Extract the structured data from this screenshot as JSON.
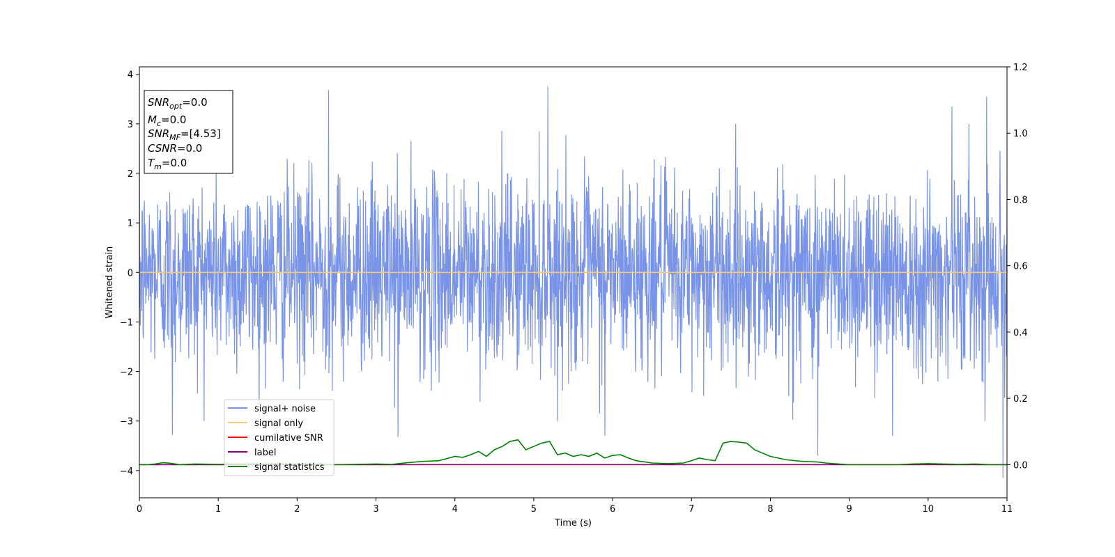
{
  "chart_data": {
    "type": "line",
    "xlabel": "Time (s)",
    "ylabel": "Whitened strain",
    "xlim": [
      0,
      11
    ],
    "ylim": [
      -4.55,
      4.15
    ],
    "y2lim": [
      -0.1,
      1.2
    ],
    "x_ticks": [
      "0",
      "1",
      "2",
      "3",
      "4",
      "5",
      "6",
      "7",
      "8",
      "9",
      "10",
      "11"
    ],
    "y_ticks": [
      "−4",
      "−3",
      "−2",
      "−1",
      "0",
      "1",
      "2",
      "3",
      "4"
    ],
    "y2_ticks": [
      "0.0",
      "0.2",
      "0.4",
      "0.6",
      "0.8",
      "1.0",
      "1.2"
    ],
    "grid": false,
    "legend_position": "lower-left",
    "info_box": {
      "position": "top-left",
      "lines": [
        {
          "base": "SNR",
          "sub": "opt",
          "value": "=0.0"
        },
        {
          "base": "M",
          "sub": "c",
          "value": "=0.0"
        },
        {
          "base": "SNR",
          "sub": "MF",
          "value": "=[4.53]"
        },
        {
          "base": "CSNR",
          "sub": "",
          "value": "=0.0"
        },
        {
          "base": "T",
          "sub": "m",
          "value": "=0.0"
        }
      ]
    },
    "series": [
      {
        "name": "signal+ noise",
        "color": "#7893e8",
        "axis": "left",
        "kind": "noise",
        "x_range": [
          0,
          11
        ],
        "amplitude_sd": 1.0,
        "spikes": [
          [
            2.4,
            3.68
          ],
          [
            5.18,
            3.75
          ],
          [
            10.3,
            3.35
          ],
          [
            10.74,
            3.55
          ],
          [
            3.28,
            -3.32
          ],
          [
            8.6,
            -3.7
          ],
          [
            10.95,
            -4.15
          ],
          [
            5.9,
            -3.3
          ],
          [
            0.42,
            -3.28
          ],
          [
            9.55,
            -3.3
          ]
        ]
      },
      {
        "name": "signal only",
        "color": "#ffc96b",
        "axis": "left",
        "x": [
          0,
          11
        ],
        "y": [
          0,
          0
        ]
      },
      {
        "name": "cumilative SNR",
        "color": "#ff0000",
        "axis": "right",
        "x": [
          0,
          11
        ],
        "y": [
          0,
          0
        ]
      },
      {
        "name": "label",
        "color": "#800080",
        "axis": "right",
        "x": [
          0,
          11
        ],
        "y": [
          0,
          0
        ]
      },
      {
        "name": "signal statistics",
        "color": "#008000",
        "axis": "right",
        "x": [
          0,
          0.1,
          0.2,
          0.3,
          0.4,
          0.5,
          0.7,
          1.0,
          1.5,
          2.0,
          2.5,
          3.0,
          3.2,
          3.4,
          3.6,
          3.8,
          4.0,
          4.1,
          4.2,
          4.3,
          4.4,
          4.5,
          4.6,
          4.7,
          4.8,
          4.9,
          5.0,
          5.1,
          5.2,
          5.3,
          5.4,
          5.5,
          5.6,
          5.7,
          5.8,
          5.9,
          6.0,
          6.1,
          6.2,
          6.3,
          6.5,
          6.7,
          6.9,
          7.0,
          7.1,
          7.2,
          7.3,
          7.4,
          7.5,
          7.6,
          7.7,
          7.8,
          7.9,
          8.0,
          8.1,
          8.2,
          8.4,
          8.6,
          8.7,
          8.8,
          9.0,
          9.3,
          9.6,
          9.8,
          10.0,
          10.2,
          10.4,
          10.6,
          10.8,
          11.0
        ],
        "y": [
          0.0,
          0.0,
          0.002,
          0.006,
          0.004,
          0.0,
          0.002,
          0.001,
          0.002,
          0.002,
          0.0,
          0.002,
          0.001,
          0.006,
          0.01,
          0.012,
          0.025,
          0.022,
          0.03,
          0.04,
          0.025,
          0.045,
          0.055,
          0.07,
          0.075,
          0.045,
          0.055,
          0.065,
          0.07,
          0.03,
          0.035,
          0.025,
          0.03,
          0.025,
          0.035,
          0.02,
          0.028,
          0.03,
          0.02,
          0.012,
          0.005,
          0.003,
          0.005,
          0.012,
          0.02,
          0.015,
          0.012,
          0.065,
          0.07,
          0.068,
          0.065,
          0.045,
          0.035,
          0.025,
          0.02,
          0.015,
          0.01,
          0.008,
          0.005,
          0.003,
          0.0,
          0.0,
          0.0,
          0.002,
          0.003,
          0.002,
          0.001,
          0.002,
          0.0,
          0.0
        ]
      }
    ]
  }
}
